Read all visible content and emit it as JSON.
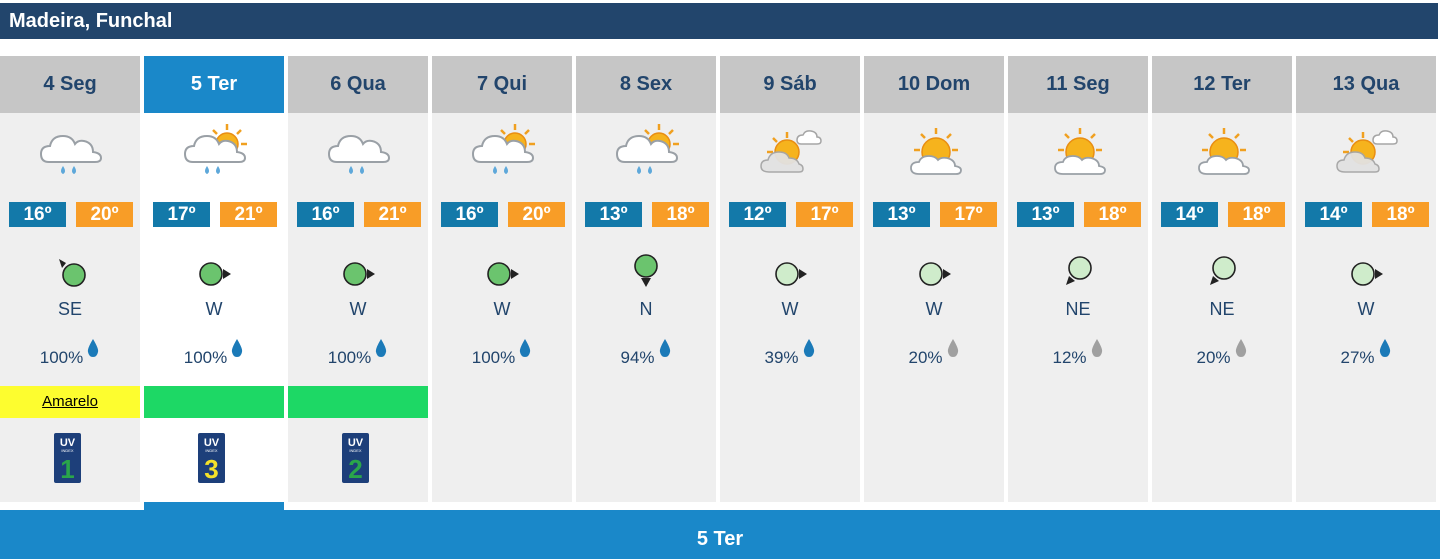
{
  "location": "Madeira, Funchal",
  "selected_day_label": "5 Ter",
  "colors": {
    "title_bg": "#22456c",
    "selected": "#1a88c9",
    "min_temp": "#1379a9",
    "max_temp": "#f89d27",
    "warning_yellow": "#fdfd2f",
    "warning_green": "#1dd865"
  },
  "days": [
    {
      "label": "4 Seg",
      "icon": "rain-cloud-icon",
      "tmin": "16º",
      "tmax": "20º",
      "wind_icon": "wind-dark-icon",
      "wind_dir": "SE",
      "precip": "100%",
      "drop": "blue",
      "warning": "Amarelo",
      "warning_level": "yellow",
      "uv": "1"
    },
    {
      "label": "5 Ter",
      "icon": "sun-rain-cloud-icon",
      "tmin": "17º",
      "tmax": "21º",
      "wind_icon": "wind-dark-icon",
      "wind_dir": "W",
      "precip": "100%",
      "drop": "blue",
      "warning": "",
      "warning_level": "green",
      "uv": "3"
    },
    {
      "label": "6 Qua",
      "icon": "rain-cloud-icon",
      "tmin": "16º",
      "tmax": "21º",
      "wind_icon": "wind-dark-icon",
      "wind_dir": "W",
      "precip": "100%",
      "drop": "blue",
      "warning": "",
      "warning_level": "green",
      "uv": "2"
    },
    {
      "label": "7 Qui",
      "icon": "sun-rain-cloud-icon",
      "tmin": "16º",
      "tmax": "20º",
      "wind_icon": "wind-dark-icon",
      "wind_dir": "W",
      "precip": "100%",
      "drop": "blue",
      "warning": "",
      "warning_level": "",
      "uv": ""
    },
    {
      "label": "8 Sex",
      "icon": "sun-rain-cloud-icon",
      "tmin": "13º",
      "tmax": "18º",
      "wind_icon": "wind-dark-icon",
      "wind_dir": "N",
      "precip": "94%",
      "drop": "blue",
      "warning": "",
      "warning_level": "",
      "uv": ""
    },
    {
      "label": "9 Sáb",
      "icon": "sun-clouds-icon",
      "tmin": "12º",
      "tmax": "17º",
      "wind_icon": "wind-light-icon",
      "wind_dir": "W",
      "precip": "39%",
      "drop": "blue",
      "warning": "",
      "warning_level": "",
      "uv": ""
    },
    {
      "label": "10 Dom",
      "icon": "sun-cloud-icon",
      "tmin": "13º",
      "tmax": "17º",
      "wind_icon": "wind-light-icon",
      "wind_dir": "W",
      "precip": "20%",
      "drop": "gray",
      "warning": "",
      "warning_level": "",
      "uv": ""
    },
    {
      "label": "11 Seg",
      "icon": "sun-cloud-icon",
      "tmin": "13º",
      "tmax": "18º",
      "wind_icon": "wind-light-icon",
      "wind_dir": "NE",
      "precip": "12%",
      "drop": "gray",
      "warning": "",
      "warning_level": "",
      "uv": ""
    },
    {
      "label": "12 Ter",
      "icon": "sun-cloud-icon",
      "tmin": "14º",
      "tmax": "18º",
      "wind_icon": "wind-light-icon",
      "wind_dir": "NE",
      "precip": "20%",
      "drop": "gray",
      "warning": "",
      "warning_level": "",
      "uv": ""
    },
    {
      "label": "13 Qua",
      "icon": "sun-clouds-icon",
      "tmin": "14º",
      "tmax": "18º",
      "wind_icon": "wind-light-icon",
      "wind_dir": "W",
      "precip": "27%",
      "drop": "blue",
      "warning": "",
      "warning_level": "",
      "uv": ""
    }
  ]
}
